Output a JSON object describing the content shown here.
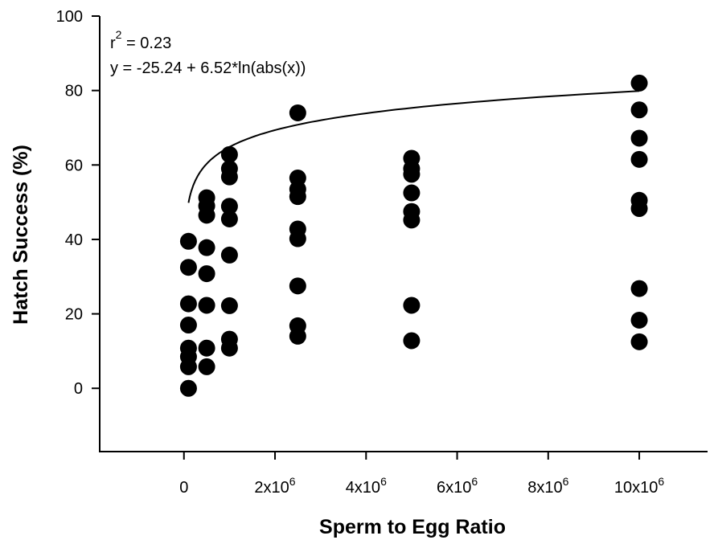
{
  "chart_data": {
    "type": "scatter",
    "xlabel": "Sperm to Egg Ratio",
    "ylabel": "Hatch Success (%)",
    "xlim": [
      -1850000,
      11500000
    ],
    "ylim": [
      -17,
      100
    ],
    "yticks": [
      {
        "value": 0,
        "label": "0"
      },
      {
        "value": 20,
        "label": "20"
      },
      {
        "value": 40,
        "label": "40"
      },
      {
        "value": 60,
        "label": "60"
      },
      {
        "value": 80,
        "label": "80"
      },
      {
        "value": 100,
        "label": "100"
      }
    ],
    "xticks": [
      {
        "value": 0,
        "base": "0",
        "exp": ""
      },
      {
        "value": 2000000,
        "base": "2x10",
        "exp": "6"
      },
      {
        "value": 4000000,
        "base": "4x10",
        "exp": "6"
      },
      {
        "value": 6000000,
        "base": "6x10",
        "exp": "6"
      },
      {
        "value": 8000000,
        "base": "8x10",
        "exp": "6"
      },
      {
        "value": 10000000,
        "base": "10x10",
        "exp": "6"
      }
    ],
    "annotations": {
      "r2_prefix": "r",
      "r2_exp": "2",
      "r2_value": " = 0.23",
      "equation": "y = -25.24 + 6.52*ln(abs(x))"
    },
    "fit": {
      "intercept": -25.24,
      "slope": 6.52,
      "form": "ln"
    },
    "points": [
      {
        "x": 100000,
        "y": 39.5
      },
      {
        "x": 100000,
        "y": 32.5
      },
      {
        "x": 100000,
        "y": 22.7
      },
      {
        "x": 100000,
        "y": 17.0
      },
      {
        "x": 100000,
        "y": 10.8
      },
      {
        "x": 100000,
        "y": 8.5
      },
      {
        "x": 100000,
        "y": 5.8
      },
      {
        "x": 100000,
        "y": 0.0
      },
      {
        "x": 500000,
        "y": 51.2
      },
      {
        "x": 500000,
        "y": 49.0
      },
      {
        "x": 500000,
        "y": 46.5
      },
      {
        "x": 500000,
        "y": 37.8
      },
      {
        "x": 500000,
        "y": 30.8
      },
      {
        "x": 500000,
        "y": 22.3
      },
      {
        "x": 500000,
        "y": 10.8
      },
      {
        "x": 500000,
        "y": 5.8
      },
      {
        "x": 1000000,
        "y": 62.8
      },
      {
        "x": 1000000,
        "y": 59.0
      },
      {
        "x": 1000000,
        "y": 56.8
      },
      {
        "x": 1000000,
        "y": 48.9
      },
      {
        "x": 1000000,
        "y": 45.5
      },
      {
        "x": 1000000,
        "y": 35.8
      },
      {
        "x": 1000000,
        "y": 22.2
      },
      {
        "x": 1000000,
        "y": 13.2
      },
      {
        "x": 1000000,
        "y": 10.8
      },
      {
        "x": 2500000,
        "y": 74.0
      },
      {
        "x": 2500000,
        "y": 56.5
      },
      {
        "x": 2500000,
        "y": 53.5
      },
      {
        "x": 2500000,
        "y": 51.5
      },
      {
        "x": 2500000,
        "y": 42.8
      },
      {
        "x": 2500000,
        "y": 40.2
      },
      {
        "x": 2500000,
        "y": 27.5
      },
      {
        "x": 2500000,
        "y": 16.8
      },
      {
        "x": 2500000,
        "y": 14.0
      },
      {
        "x": 5000000,
        "y": 61.8
      },
      {
        "x": 5000000,
        "y": 59.0
      },
      {
        "x": 5000000,
        "y": 57.5
      },
      {
        "x": 5000000,
        "y": 52.5
      },
      {
        "x": 5000000,
        "y": 47.5
      },
      {
        "x": 5000000,
        "y": 45.2
      },
      {
        "x": 5000000,
        "y": 22.3
      },
      {
        "x": 5000000,
        "y": 12.8
      },
      {
        "x": 10000000,
        "y": 82.0
      },
      {
        "x": 10000000,
        "y": 74.8
      },
      {
        "x": 10000000,
        "y": 67.2
      },
      {
        "x": 10000000,
        "y": 61.5
      },
      {
        "x": 10000000,
        "y": 50.5
      },
      {
        "x": 10000000,
        "y": 48.3
      },
      {
        "x": 10000000,
        "y": 26.8
      },
      {
        "x": 10000000,
        "y": 18.3
      },
      {
        "x": 10000000,
        "y": 12.5
      }
    ]
  }
}
